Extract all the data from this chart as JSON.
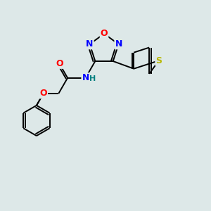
{
  "background_color": "#dde8e8",
  "bond_color": "#000000",
  "atom_colors": {
    "O": "#ff0000",
    "N": "#0000ff",
    "S": "#b8b800",
    "C": "#000000",
    "H": "#008080"
  },
  "figsize": [
    3.0,
    3.0
  ],
  "dpi": 100
}
